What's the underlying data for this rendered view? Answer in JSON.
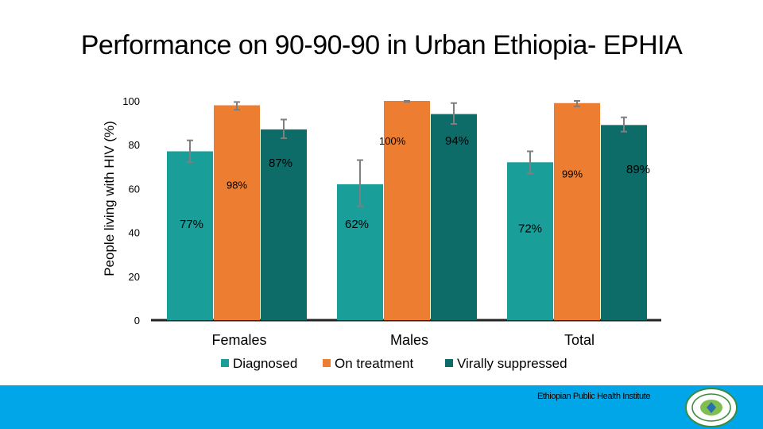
{
  "title": "Performance on 90-90-90 in Urban Ethiopia- EPHIA",
  "footer": {
    "institute": "Ethiopian Public Health Institute"
  },
  "colors": {
    "diagnosed": "#1a9e9a",
    "on_treatment": "#ed7d31",
    "virally_suppressed": "#0d6b68",
    "footer": "#00a6e8"
  },
  "chart_data": {
    "type": "bar",
    "categories": [
      "Females",
      "Males",
      "Total"
    ],
    "ylabel": "People living with HIV (%)",
    "ylim": [
      0,
      100
    ],
    "yticks": [
      0,
      20,
      40,
      60,
      80,
      100
    ],
    "legend": "bottom",
    "grid": false,
    "series": [
      {
        "name": "Diagnosed",
        "values": [
          77,
          62,
          72
        ],
        "errors": [
          [
            72,
            82
          ],
          [
            52,
            73
          ],
          [
            67,
            77
          ]
        ],
        "labels": [
          "77%",
          "62%",
          "72%"
        ]
      },
      {
        "name": "On treatment",
        "values": [
          98,
          100,
          99
        ],
        "errors": [
          [
            96,
            99.5
          ],
          [
            99.5,
            100
          ],
          [
            97.5,
            100
          ]
        ],
        "labels": [
          "98%",
          "100%",
          "99%"
        ]
      },
      {
        "name": "Virally suppressed",
        "values": [
          87,
          94,
          89
        ],
        "errors": [
          [
            83,
            91.5
          ],
          [
            89.5,
            99
          ],
          [
            86,
            92.5
          ]
        ],
        "labels": [
          "87%",
          "94%",
          "89%"
        ]
      }
    ]
  }
}
